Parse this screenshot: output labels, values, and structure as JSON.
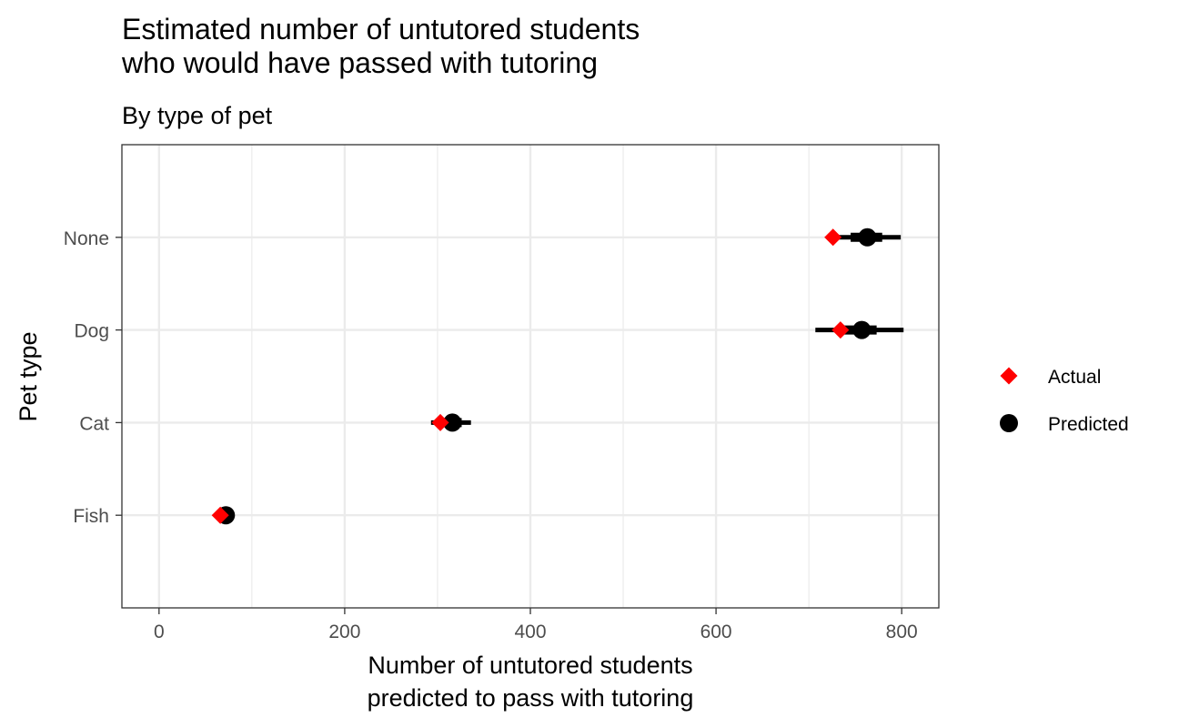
{
  "chart_data": {
    "type": "dot-interval",
    "title_lines": [
      "Estimated number of untutored students",
      "who would have passed with tutoring"
    ],
    "subtitle": "By type of pet",
    "xlabel_lines": [
      "Number of untutored students",
      "predicted to pass with tutoring"
    ],
    "ylabel": "Pet type",
    "xlim": [
      -40,
      840
    ],
    "x_ticks": [
      0,
      200,
      400,
      600,
      800
    ],
    "x_tick_labels": [
      "0",
      "200",
      "400",
      "600",
      "800"
    ],
    "categories": [
      "Fish",
      "Cat",
      "Dog",
      "None"
    ],
    "grid": true,
    "legend_position": "right",
    "series": [
      {
        "name": "Predicted",
        "shape": "circle",
        "color": "#000000",
        "values": [
          72,
          316,
          757,
          763
        ],
        "interval_inner": [
          [
            70,
            76
          ],
          [
            305,
            326
          ],
          [
            734,
            773
          ],
          [
            745,
            779
          ]
        ],
        "interval_outer": [
          [
            65,
            80
          ],
          [
            293,
            336
          ],
          [
            707,
            802
          ],
          [
            727,
            799
          ]
        ]
      },
      {
        "name": "Actual",
        "shape": "diamond",
        "color": "#ff0000",
        "values": [
          66,
          303,
          734,
          726
        ]
      }
    ],
    "legend": [
      {
        "label": "Actual",
        "shape": "diamond",
        "color": "#ff0000"
      },
      {
        "label": "Predicted",
        "shape": "circle",
        "color": "#000000"
      }
    ]
  }
}
